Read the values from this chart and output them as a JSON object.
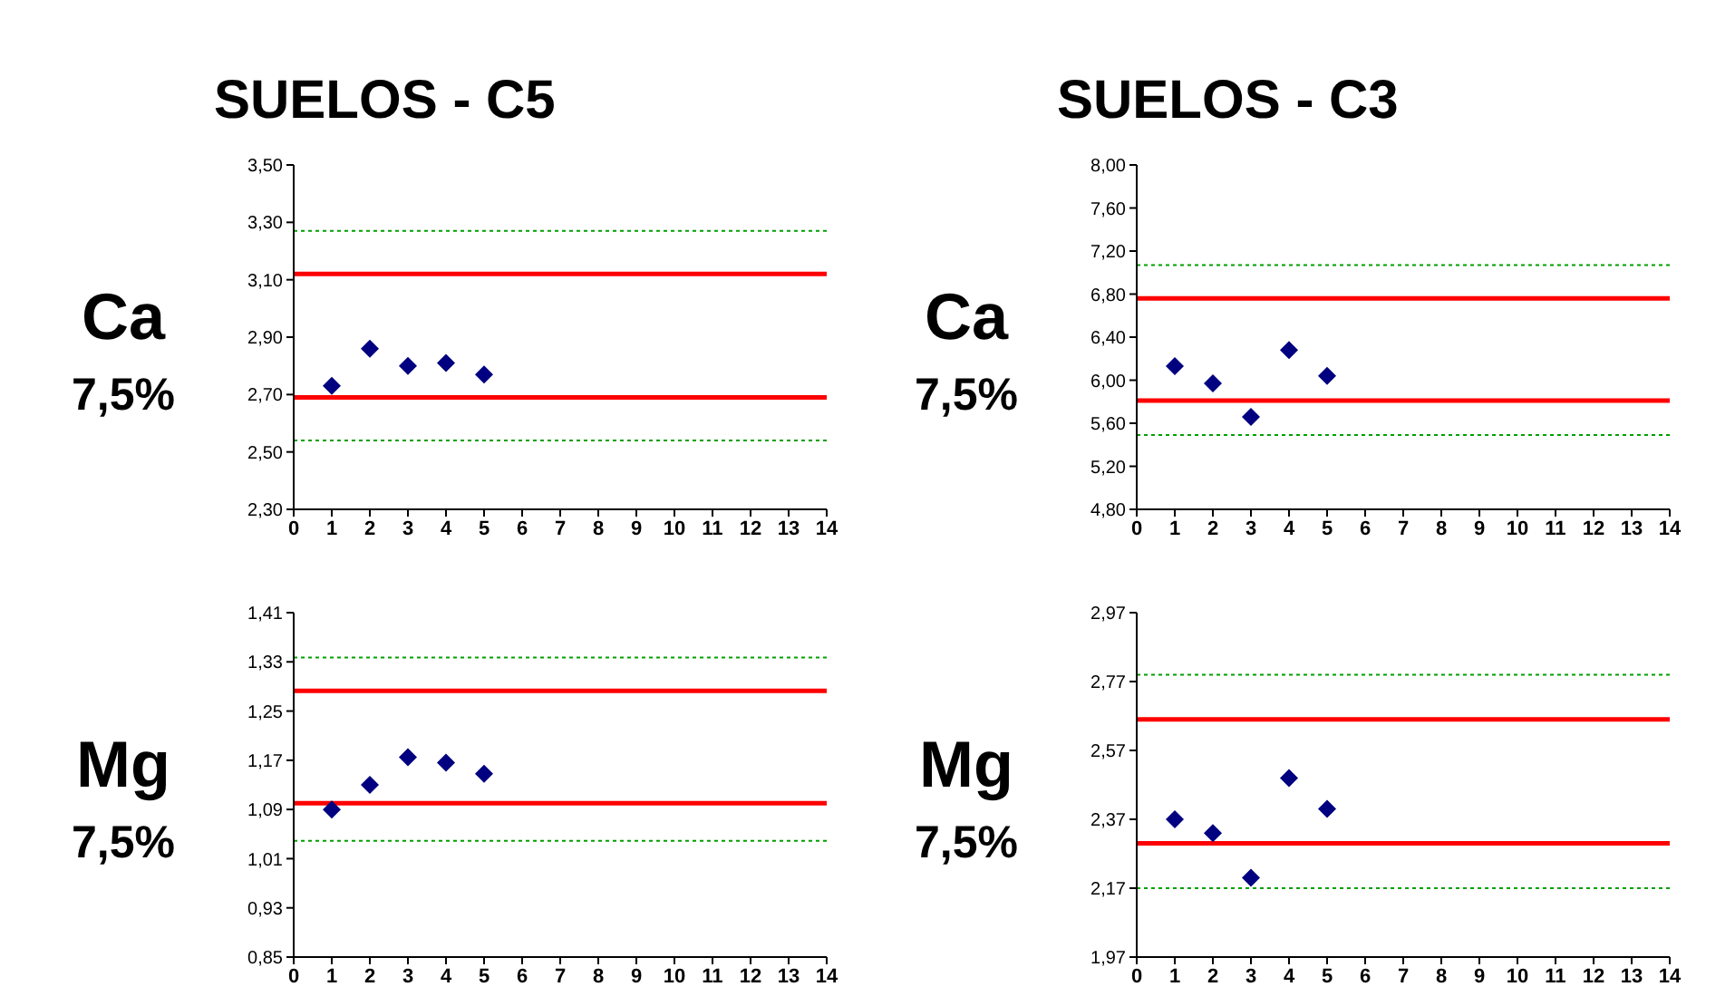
{
  "chart_data": [
    {
      "type": "scatter",
      "title": "SUELOS - C5",
      "annotations": [
        "Ca",
        "7,5%"
      ],
      "x": [
        1,
        2,
        3,
        4,
        5
      ],
      "values": [
        2.73,
        2.86,
        2.8,
        2.81,
        2.77
      ],
      "color": "#000080",
      "marker": "diamond",
      "xlim": [
        0,
        14
      ],
      "xticks": [
        0,
        1,
        2,
        3,
        4,
        5,
        6,
        7,
        8,
        9,
        10,
        11,
        12,
        13,
        14
      ],
      "ylim": [
        2.3,
        3.5
      ],
      "yticks": [
        {
          "value": 2.3,
          "label": "2,30"
        },
        {
          "value": 2.5,
          "label": "2,50"
        },
        {
          "value": 2.7,
          "label": "2,70"
        },
        {
          "value": 2.9,
          "label": "2,90"
        },
        {
          "value": 3.1,
          "label": "3,10"
        },
        {
          "value": 3.3,
          "label": "3,30"
        },
        {
          "value": 3.5,
          "label": "3,50"
        }
      ],
      "ref_lines": [
        {
          "axis": "y",
          "value": 3.12,
          "color": "#ff0000",
          "line_style": "solid"
        },
        {
          "axis": "y",
          "value": 2.69,
          "color": "#ff0000",
          "line_style": "solid"
        },
        {
          "axis": "y",
          "value": 3.27,
          "color": "#00a000",
          "line_style": "dotted"
        },
        {
          "axis": "y",
          "value": 2.54,
          "color": "#00a000",
          "line_style": "dotted"
        }
      ]
    },
    {
      "type": "scatter",
      "title": "SUELOS - C3",
      "annotations": [
        "Ca",
        "7,5%"
      ],
      "x": [
        1,
        2,
        3,
        4,
        5
      ],
      "values": [
        6.13,
        5.97,
        5.66,
        6.28,
        6.04
      ],
      "color": "#000080",
      "marker": "diamond",
      "xlim": [
        0,
        14
      ],
      "xticks": [
        0,
        1,
        2,
        3,
        4,
        5,
        6,
        7,
        8,
        9,
        10,
        11,
        12,
        13,
        14
      ],
      "ylim": [
        4.8,
        8.0
      ],
      "yticks": [
        {
          "value": 4.8,
          "label": "4,80"
        },
        {
          "value": 5.2,
          "label": "5,20"
        },
        {
          "value": 5.6,
          "label": "5,60"
        },
        {
          "value": 6.0,
          "label": "6,00"
        },
        {
          "value": 6.4,
          "label": "6,40"
        },
        {
          "value": 6.8,
          "label": "6,80"
        },
        {
          "value": 7.2,
          "label": "7,20"
        },
        {
          "value": 7.6,
          "label": "7,60"
        },
        {
          "value": 8.0,
          "label": "8,00"
        }
      ],
      "ref_lines": [
        {
          "axis": "y",
          "value": 6.76,
          "color": "#ff0000",
          "line_style": "solid"
        },
        {
          "axis": "y",
          "value": 5.81,
          "color": "#ff0000",
          "line_style": "solid"
        },
        {
          "axis": "y",
          "value": 7.07,
          "color": "#00a000",
          "line_style": "dotted"
        },
        {
          "axis": "y",
          "value": 5.49,
          "color": "#00a000",
          "line_style": "dotted"
        }
      ]
    },
    {
      "type": "scatter",
      "annotations": [
        "Mg",
        "7,5%"
      ],
      "x": [
        1,
        2,
        3,
        4,
        5
      ],
      "values": [
        1.09,
        1.13,
        1.175,
        1.166,
        1.148
      ],
      "color": "#000080",
      "marker": "diamond",
      "xlim": [
        0,
        14
      ],
      "xticks": [
        0,
        1,
        2,
        3,
        4,
        5,
        6,
        7,
        8,
        9,
        10,
        11,
        12,
        13,
        14
      ],
      "ylim": [
        0.85,
        1.41
      ],
      "yticks": [
        {
          "value": 0.85,
          "label": "0,85"
        },
        {
          "value": 0.93,
          "label": "0,93"
        },
        {
          "value": 1.01,
          "label": "1,01"
        },
        {
          "value": 1.09,
          "label": "1,09"
        },
        {
          "value": 1.17,
          "label": "1,17"
        },
        {
          "value": 1.25,
          "label": "1,25"
        },
        {
          "value": 1.33,
          "label": "1,33"
        },
        {
          "value": 1.41,
          "label": "1,41"
        }
      ],
      "ref_lines": [
        {
          "axis": "y",
          "value": 1.283,
          "color": "#ff0000",
          "line_style": "solid"
        },
        {
          "axis": "y",
          "value": 1.1,
          "color": "#ff0000",
          "line_style": "solid"
        },
        {
          "axis": "y",
          "value": 1.337,
          "color": "#00a000",
          "line_style": "dotted"
        },
        {
          "axis": "y",
          "value": 1.039,
          "color": "#00a000",
          "line_style": "dotted"
        }
      ]
    },
    {
      "type": "scatter",
      "annotations": [
        "Mg",
        "7,5%"
      ],
      "x": [
        1,
        2,
        3,
        4,
        5
      ],
      "values": [
        2.37,
        2.33,
        2.2,
        2.49,
        2.4
      ],
      "color": "#000080",
      "marker": "diamond",
      "xlim": [
        0,
        14
      ],
      "xticks": [
        0,
        1,
        2,
        3,
        4,
        5,
        6,
        7,
        8,
        9,
        10,
        11,
        12,
        13,
        14
      ],
      "ylim": [
        1.97,
        2.97
      ],
      "yticks": [
        {
          "value": 1.97,
          "label": "1,97"
        },
        {
          "value": 2.17,
          "label": "2,17"
        },
        {
          "value": 2.37,
          "label": "2,37"
        },
        {
          "value": 2.57,
          "label": "2,57"
        },
        {
          "value": 2.77,
          "label": "2,77"
        },
        {
          "value": 2.97,
          "label": "2,97"
        }
      ],
      "ref_lines": [
        {
          "axis": "y",
          "value": 2.66,
          "color": "#ff0000",
          "line_style": "solid"
        },
        {
          "axis": "y",
          "value": 2.3,
          "color": "#ff0000",
          "line_style": "solid"
        },
        {
          "axis": "y",
          "value": 2.79,
          "color": "#00a000",
          "line_style": "dotted"
        },
        {
          "axis": "y",
          "value": 2.17,
          "color": "#00a000",
          "line_style": "dotted"
        }
      ]
    }
  ]
}
